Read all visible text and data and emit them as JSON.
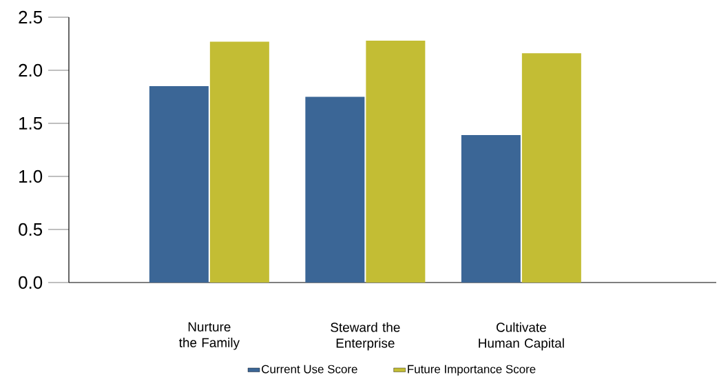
{
  "chart_data": {
    "type": "bar",
    "categories": [
      "Nurture the Family",
      "Steward the Enterprise",
      "Cultivate Human Capital"
    ],
    "series": [
      {
        "name": "Current Use Score",
        "color": "#3b6696",
        "values": [
          1.85,
          1.75,
          1.39
        ]
      },
      {
        "name": "Future Importance Score",
        "color": "#c3bd34",
        "values": [
          2.27,
          2.28,
          2.16
        ]
      }
    ],
    "ylim": [
      0,
      2.5
    ],
    "yticks": [
      {
        "value": 0,
        "label": "0.0"
      },
      {
        "value": 0.5,
        "label": "0.5"
      },
      {
        "value": 1,
        "label": "1.0"
      },
      {
        "value": 1.5,
        "label": "1.5"
      },
      {
        "value": 2,
        "label": "2.0"
      },
      {
        "value": 2.5,
        "label": "2.5"
      }
    ],
    "grid": false,
    "legend": "bottom"
  }
}
